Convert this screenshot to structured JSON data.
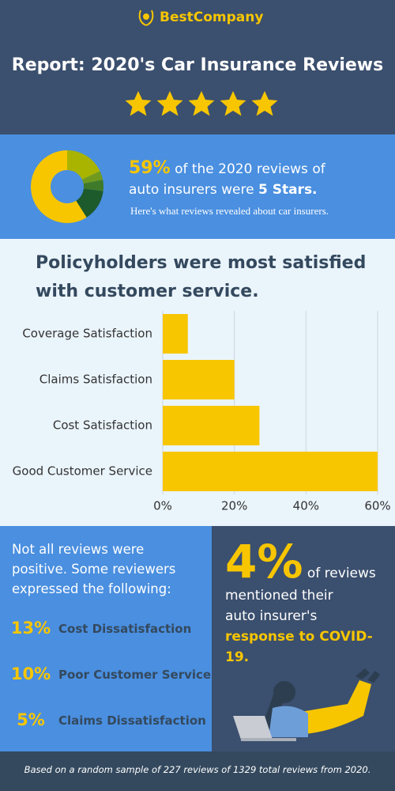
{
  "logo": "BestCompany",
  "header": {
    "title": "Report: 2020's Car Insurance Reviews"
  },
  "hero": {
    "percent": "59%",
    "line1": "of the 2020 reviews of",
    "line2": "auto insurers were",
    "bold": "5 Stars.",
    "sub": "Here's what reviews revealed about car insurers."
  },
  "heading": {
    "line1": "Policyholders were most satisfied",
    "line2": "with",
    "bold": "customer service."
  },
  "chart_data": [
    {
      "type": "pie",
      "categories": [
        null,
        null,
        null,
        null,
        null
      ],
      "values": [
        18,
        4,
        5,
        14,
        59
      ],
      "colors": [
        "#a9b400",
        "#6f9a1e",
        "#3f7a2a",
        "#1d5a2c",
        "#f7c600"
      ]
    },
    {
      "type": "bar",
      "orientation": "horizontal",
      "categories": [
        "Coverage Satisfaction",
        "Claims Satisfaction",
        "Cost Satisfaction",
        "Good Customer Service"
      ],
      "values": [
        7,
        20,
        27,
        60
      ],
      "color": "#f7c600",
      "xlim": [
        0,
        60
      ],
      "xticks": [
        {
          "value": 0,
          "label": "0%"
        },
        {
          "value": 20,
          "label": "20%"
        },
        {
          "value": 40,
          "label": "40%"
        },
        {
          "value": 60,
          "label": "60%"
        }
      ],
      "grid": true
    }
  ],
  "negative": {
    "intro": "Not all reviews were positive. Some reviewers expressed the following:",
    "items": [
      {
        "percent": "13%",
        "label": "Cost Dissatisfaction"
      },
      {
        "percent": "10%",
        "label": "Poor Customer Service"
      },
      {
        "percent": "5%",
        "label": "Claims Dissatisfaction"
      }
    ]
  },
  "covid": {
    "percent": "4%",
    "line1": "of reviews",
    "line2": "mentioned their",
    "line3": "auto insurer's",
    "bold": "response to COVID-19."
  },
  "footer": "Based on a random sample of 227 reviews of 1329 total reviews from 2020."
}
